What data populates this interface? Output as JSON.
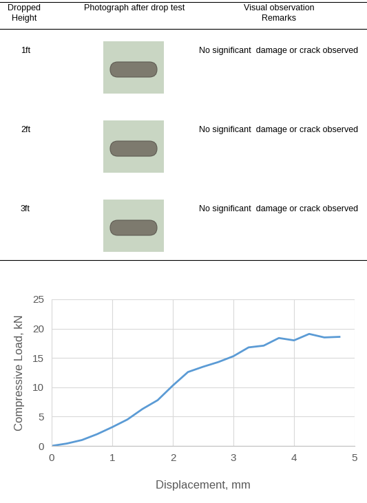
{
  "table": {
    "header": [
      "Dropped\nHeight",
      "Photograph after drop test",
      "Visual observation\nRemarks"
    ],
    "rows": [
      [
        "1ft",
        "No significant  damage or crack observed"
      ],
      [
        "2ft",
        "No significant  damage or crack observed"
      ],
      [
        "3ft",
        "No significant  damage or crack observed"
      ]
    ]
  },
  "chart_data": {
    "type": "line",
    "x_label": "Displacement, mm",
    "y_label": "Compressive Load, kN",
    "x": [
      0,
      0.25,
      0.5,
      0.75,
      1.0,
      1.25,
      1.5,
      1.75,
      2.0,
      2.25,
      2.5,
      2.75,
      3.0,
      3.25,
      3.5,
      3.75,
      4.0,
      4.25,
      4.5,
      4.75
    ],
    "values": [
      0,
      0.4,
      1.0,
      2.0,
      3.2,
      4.5,
      6.3,
      7.8,
      10.3,
      12.6,
      13.5,
      14.3,
      15.3,
      16.8,
      17.1,
      18.4,
      18.0,
      19.1,
      18.5,
      18.6
    ],
    "color": "#5b9bd5",
    "xlim": [
      0,
      5
    ],
    "xticks": [
      0,
      1,
      2,
      3,
      4,
      5
    ],
    "ylim": [
      0,
      25
    ],
    "yticks": [
      0,
      5,
      10,
      15,
      20,
      25
    ],
    "grid": true
  }
}
